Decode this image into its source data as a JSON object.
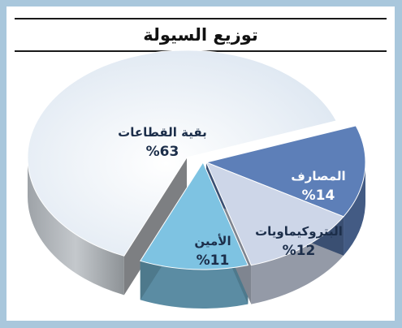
{
  "chart_data": {
    "type": "pie",
    "title": "توزيع السيولة",
    "slices": [
      {
        "label": "بقية القطاعات",
        "value": 63,
        "value_label": "%63",
        "color": "#e6eef6"
      },
      {
        "label": "المصارف",
        "value": 14,
        "value_label": "%14",
        "color": "#5d7fb8"
      },
      {
        "label": "البتروكيماويات",
        "value": 12,
        "value_label": "%12",
        "color": "#cdd6e8"
      },
      {
        "label": "الأمين",
        "value": 11,
        "value_label": "%11",
        "color": "#7ec3e2"
      }
    ]
  }
}
